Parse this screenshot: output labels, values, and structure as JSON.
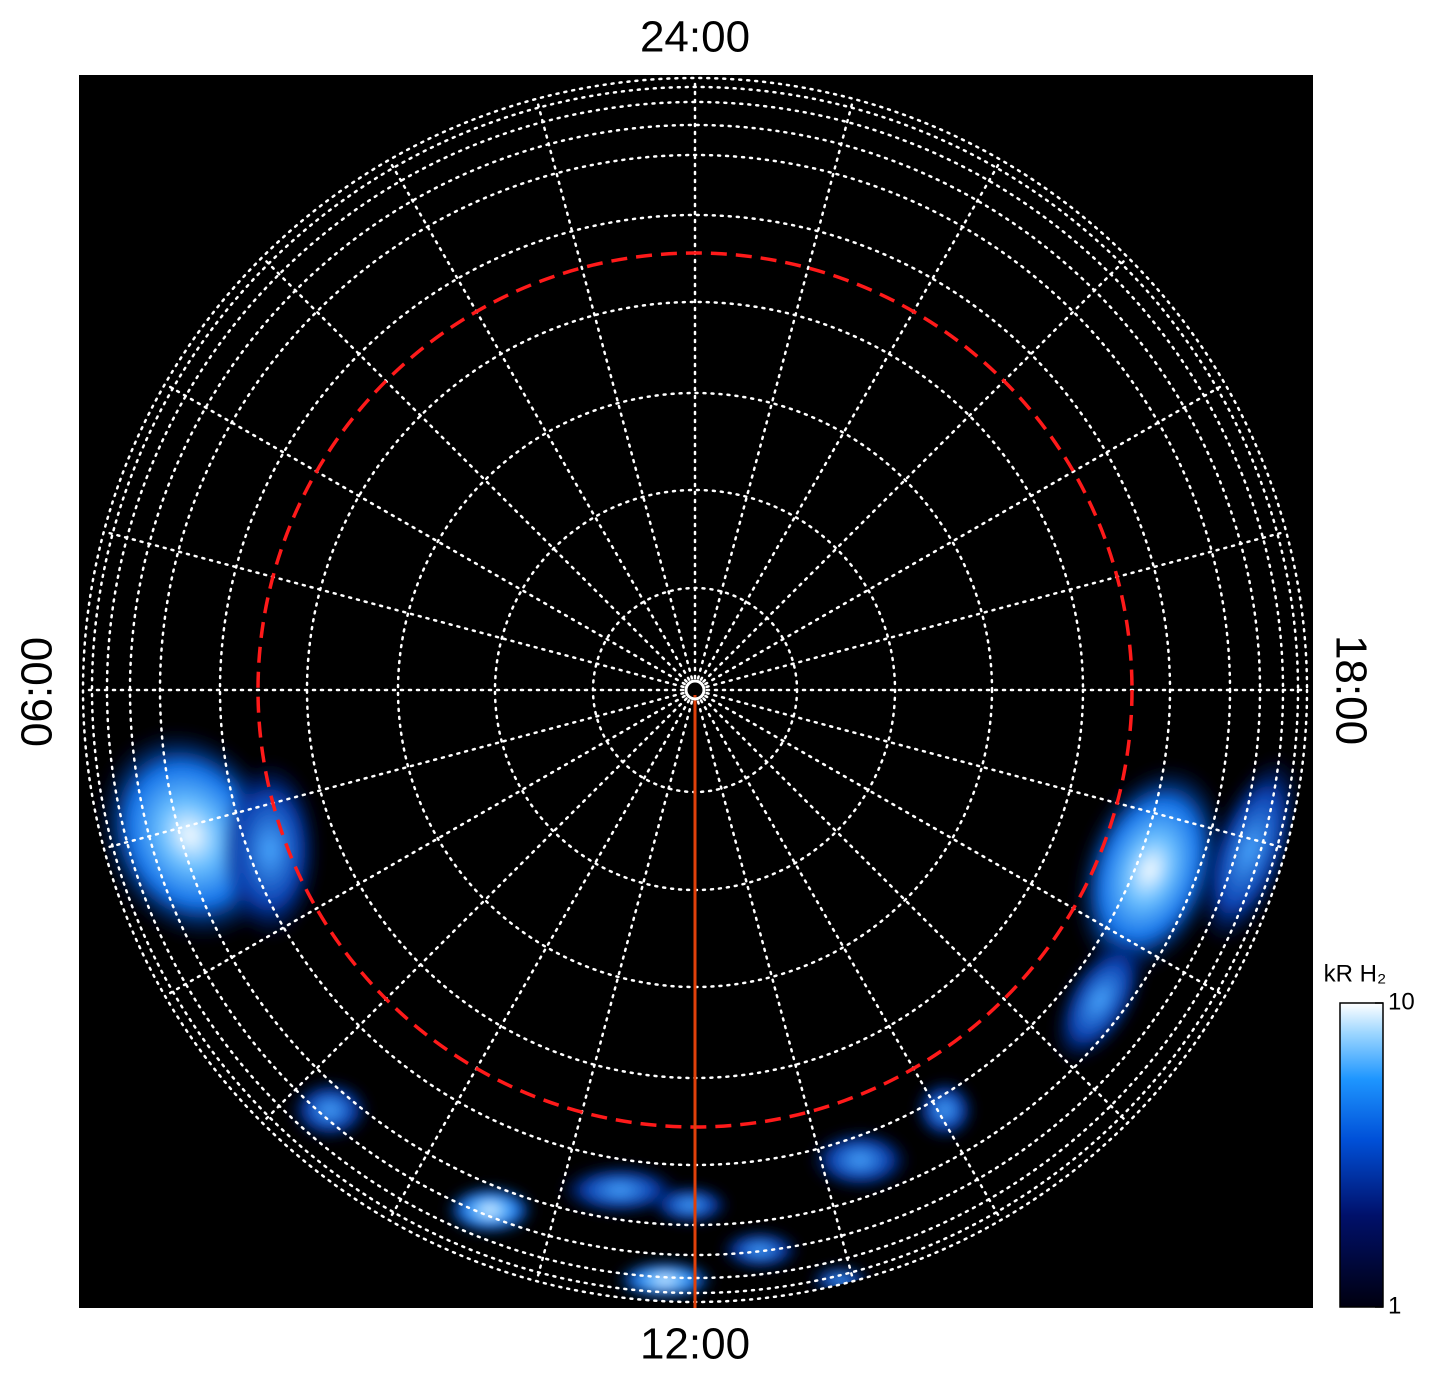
{
  "chart_data": {
    "type": "polar-image",
    "local_time_labels": {
      "top": "24:00",
      "bottom": "12:00",
      "left": "06:00",
      "right": "18:00"
    },
    "colorbar": {
      "label": "kR H₂",
      "scale": "log",
      "lim": [
        1,
        10
      ],
      "ticks": [
        1,
        10
      ]
    }
  }
}
